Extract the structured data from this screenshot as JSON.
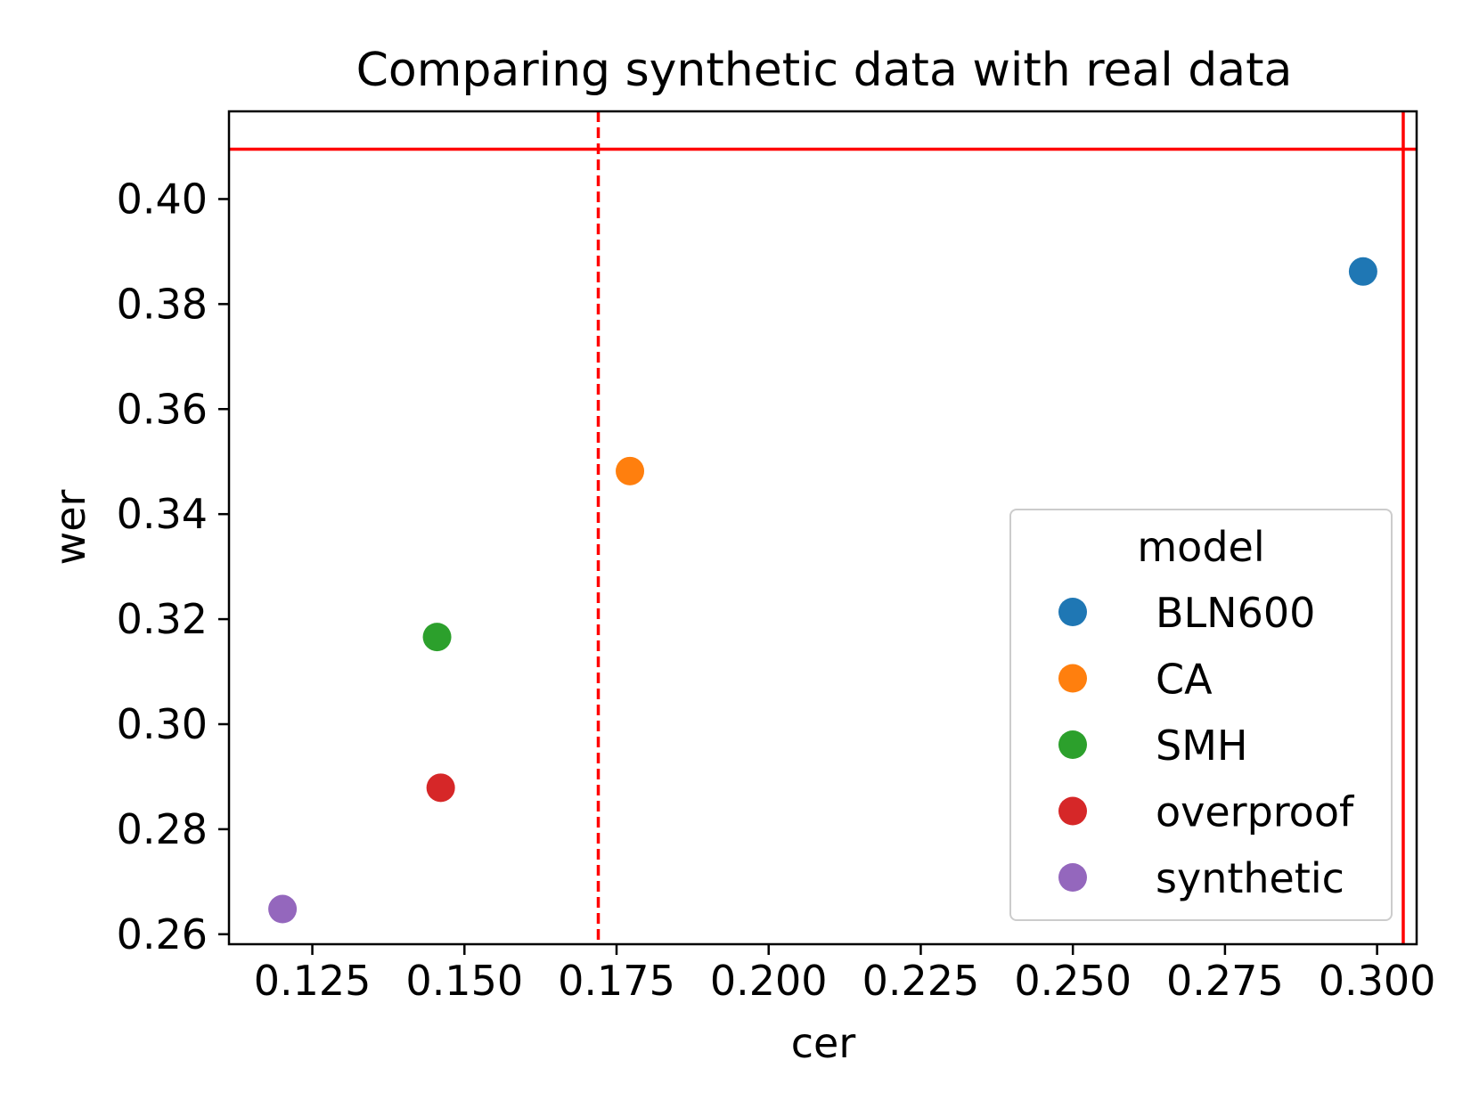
{
  "chart_data": {
    "type": "scatter",
    "title": "Comparing synthetic data with real data",
    "xlabel": "cer",
    "ylabel": "wer",
    "xlim": [
      0.1113,
      0.3065
    ],
    "ylim": [
      0.2581,
      0.4167
    ],
    "xticks": [
      0.125,
      0.15,
      0.175,
      0.2,
      0.225,
      0.25,
      0.275,
      0.3
    ],
    "xtick_labels": [
      "0.125",
      "0.150",
      "0.175",
      "0.200",
      "0.225",
      "0.250",
      "0.275",
      "0.300"
    ],
    "yticks": [
      0.26,
      0.28,
      0.3,
      0.32,
      0.34,
      0.36,
      0.38,
      0.4
    ],
    "ytick_labels": [
      "0.26",
      "0.28",
      "0.30",
      "0.32",
      "0.34",
      "0.36",
      "0.38",
      "0.40"
    ],
    "grid": false,
    "series": [
      {
        "name": "BLN600",
        "x": [
          0.2977
        ],
        "y": [
          0.3862
        ],
        "color": "#1f77b4"
      },
      {
        "name": "CA",
        "x": [
          0.1772
        ],
        "y": [
          0.3482
        ],
        "color": "#ff7f0e"
      },
      {
        "name": "SMH",
        "x": [
          0.1455
        ],
        "y": [
          0.3166
        ],
        "color": "#2ca02c"
      },
      {
        "name": "overproof",
        "x": [
          0.1461
        ],
        "y": [
          0.2879
        ],
        "color": "#d62728"
      },
      {
        "name": "synthetic",
        "x": [
          0.1201
        ],
        "y": [
          0.2648
        ],
        "color": "#9467bd"
      }
    ],
    "reference_lines": [
      {
        "orientation": "vertical",
        "value": 0.172,
        "style": "dashed",
        "color": "#ff0000"
      },
      {
        "orientation": "vertical",
        "value": 0.3043,
        "style": "solid",
        "color": "#ff0000"
      },
      {
        "orientation": "horizontal",
        "value": 0.4095,
        "style": "solid",
        "color": "#ff0000"
      }
    ],
    "legend": {
      "title": "model",
      "location": "lower right"
    }
  }
}
